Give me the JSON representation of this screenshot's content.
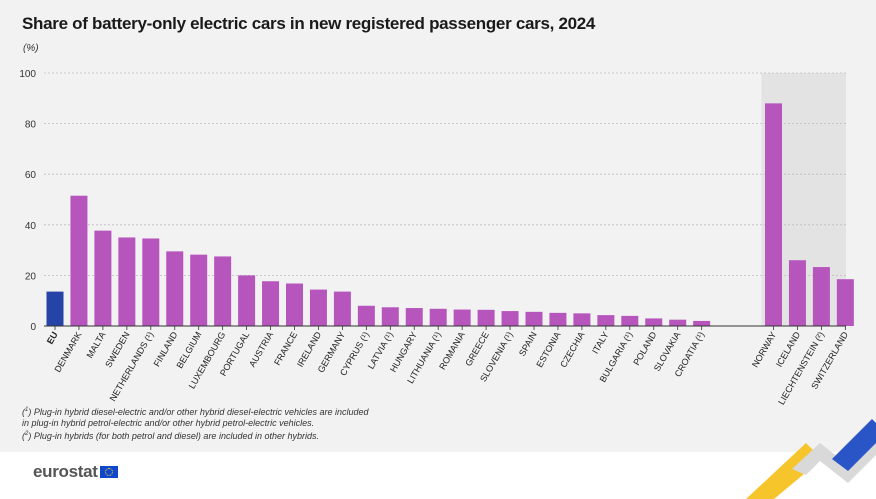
{
  "title": "Share of battery-only electric cars in new registered passenger cars, 2024",
  "unit": "(%)",
  "notes": {
    "n1_mark": "1",
    "n1_line1": "Plug-in hybrid diesel-electric and/or other hybrid diesel-electric vehicles are included",
    "n1_line2": "in plug-in hybrid petrol-electric and/or other hybrid petrol-electric vehicles.",
    "n2_mark": "2",
    "n2_line1": "Plug-in hybrids (for both petrol and diesel) are included in other hybrids."
  },
  "logo": {
    "text": "eurostat"
  },
  "colors": {
    "eu_bar": "#2644a7",
    "country_bar": "#b656bd",
    "shaded_area": "#e3e3e3",
    "background": "#f2f2f2"
  },
  "chart_data": {
    "type": "bar",
    "title": "Share of battery-only electric cars in new registered passenger cars, 2024",
    "ylabel": "(%)",
    "ylim": [
      0,
      100
    ],
    "yticks": [
      0,
      20,
      40,
      60,
      80,
      100
    ],
    "grid": true,
    "categories": [
      "EU",
      "DENMARK",
      "MALTA",
      "SWEDEN",
      "NETHERLANDS (¹)",
      "FINLAND",
      "BELGIUM",
      "LUXEMBOURG",
      "PORTUGAL",
      "AUSTRIA",
      "FRANCE",
      "IRELAND",
      "GERMANY",
      "CYPRUS (¹)",
      "LATVIA (¹)",
      "HUNGARY",
      "LITHUANIA (¹)",
      "ROMANIA",
      "GREECE",
      "SLOVENIA (¹)",
      "SPAIN",
      "ESTONIA",
      "CZECHIA",
      "ITALY",
      "BULGARIA (¹)",
      "POLAND",
      "SLOVAKIA",
      "CROATIA (¹)",
      "NORWAY",
      "ICELAND",
      "LIECHTENSTEIN (²)",
      "SWITZERLAND"
    ],
    "values": [
      13.6,
      51.5,
      37.7,
      35.0,
      34.6,
      29.5,
      28.2,
      27.5,
      20.0,
      17.7,
      16.8,
      14.4,
      13.6,
      8.0,
      7.4,
      7.1,
      6.8,
      6.5,
      6.4,
      5.9,
      5.6,
      5.2,
      5.0,
      4.3,
      4.0,
      3.0,
      2.5,
      2.0,
      88.0,
      26.0,
      23.3,
      18.5
    ],
    "groups": [
      "eu",
      "c",
      "c",
      "c",
      "c",
      "c",
      "c",
      "c",
      "c",
      "c",
      "c",
      "c",
      "c",
      "c",
      "c",
      "c",
      "c",
      "c",
      "c",
      "c",
      "c",
      "c",
      "c",
      "c",
      "c",
      "c",
      "c",
      "c",
      "efta",
      "efta",
      "efta",
      "efta"
    ]
  }
}
